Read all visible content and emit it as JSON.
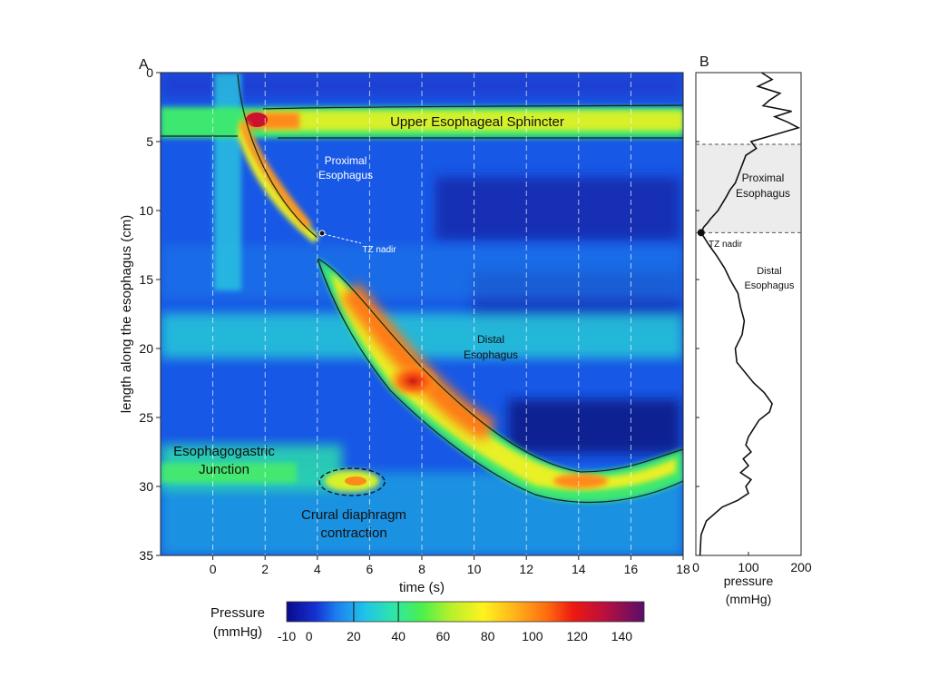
{
  "chart_data": [
    {
      "panel": "A",
      "type": "heatmap",
      "title": "",
      "xlabel": "time (s)",
      "ylabel": "length along the esophagus (cm)",
      "xlim": [
        -2,
        18
      ],
      "ylim": [
        35,
        0
      ],
      "x_ticks": [
        0,
        2,
        4,
        6,
        8,
        10,
        12,
        14,
        16,
        18
      ],
      "y_ticks": [
        0,
        5,
        10,
        15,
        20,
        25,
        30,
        35
      ],
      "annotations": {
        "ues": "Upper Esophageal Sphincter",
        "proximal": [
          "Proximal",
          "Esophagus"
        ],
        "tz": "TZ nadir",
        "distal": [
          "Distal",
          "Esophagus"
        ],
        "egj": [
          "Esophagogastric",
          "Junction"
        ],
        "crural": [
          "Crural diaphragm",
          "contraction"
        ]
      },
      "tz_nadir_point": {
        "t": 4.2,
        "cm": 11.5
      },
      "peristaltic_front": [
        {
          "t": 1.0,
          "cm": 3.5
        },
        {
          "t": 1.8,
          "cm": 6
        },
        {
          "t": 2.6,
          "cm": 8.5
        },
        {
          "t": 3.4,
          "cm": 10.3
        },
        {
          "t": 4.2,
          "cm": 11.5
        },
        {
          "t": 5.2,
          "cm": 15
        },
        {
          "t": 6.6,
          "cm": 19
        },
        {
          "t": 8.0,
          "cm": 22
        },
        {
          "t": 9.5,
          "cm": 25
        },
        {
          "t": 11.0,
          "cm": 27.5
        },
        {
          "t": 12.5,
          "cm": 29.3
        },
        {
          "t": 14.0,
          "cm": 30
        },
        {
          "t": 15.5,
          "cm": 29.6
        },
        {
          "t": 17.0,
          "cm": 29
        },
        {
          "t": 18.0,
          "cm": 28.5
        }
      ],
      "colorbar": {
        "label": [
          "Pressure",
          "(mmHg)"
        ],
        "range": [
          -10,
          150
        ],
        "ticks": [
          -10,
          0,
          20,
          40,
          60,
          80,
          100,
          120,
          140
        ],
        "isobar_marks": [
          20,
          40
        ]
      }
    },
    {
      "panel": "B",
      "type": "line",
      "title": "",
      "xlabel": [
        "pressure",
        "(mmHg)"
      ],
      "ylabel": "",
      "xlim": [
        0,
        200
      ],
      "ylim": [
        35,
        0
      ],
      "x_ticks": [
        0,
        100,
        200
      ],
      "y_ticks": [
        0,
        5,
        10,
        15,
        20,
        25,
        30,
        35
      ],
      "shaded_region": {
        "cm": [
          5.2,
          11.6
        ],
        "label": [
          "Proximal",
          "Esophagus"
        ]
      },
      "tz_label": "TZ nadir",
      "tz_point": {
        "pressure": 10,
        "cm": 11.6
      },
      "distal_label": [
        "Distal",
        "Esophagus"
      ],
      "series": [
        {
          "pressure": [
            125,
            145,
            118,
            160,
            140,
            128,
            182,
            150,
            175,
            195,
            150,
            105,
            115,
            95,
            90,
            85,
            80,
            75,
            65,
            58,
            50,
            42,
            35,
            28,
            22,
            15,
            10,
            25,
            40,
            55,
            65,
            80,
            85,
            92,
            88,
            75,
            78,
            95,
            110,
            130,
            145,
            140,
            120,
            110,
            100,
            95,
            105,
            90,
            100,
            85,
            105,
            95,
            100,
            80,
            50,
            20,
            10,
            8
          ],
          "cm": [
            0,
            0.5,
            1,
            1.5,
            2,
            2.4,
            2.8,
            3.2,
            3.6,
            4,
            4.5,
            5,
            5.5,
            6,
            6.5,
            7,
            7.5,
            8,
            8.5,
            9,
            9.5,
            10,
            10.3,
            10.6,
            10.9,
            11.2,
            11.6,
            12.5,
            13.3,
            14.2,
            15,
            16,
            17,
            18,
            19,
            20,
            21,
            21.8,
            22.5,
            23.2,
            24,
            24.6,
            25.2,
            25.8,
            26.4,
            27,
            27.5,
            28,
            28.5,
            29,
            29.5,
            30,
            30.5,
            31,
            31.5,
            32.5,
            33.5,
            35
          ]
        }
      ]
    }
  ],
  "panel_labels": {
    "a": "A",
    "b": "B"
  }
}
